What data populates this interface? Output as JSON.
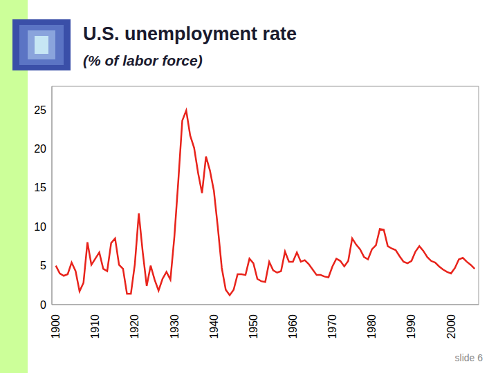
{
  "title": "U.S. unemployment rate",
  "subtitle": "(% of labor force)",
  "footer": "slide 6",
  "chart_data": {
    "type": "line",
    "color": "#e8231b",
    "grid": false,
    "x": [
      1900,
      1901,
      1902,
      1903,
      1904,
      1905,
      1906,
      1907,
      1908,
      1909,
      1910,
      1911,
      1912,
      1913,
      1914,
      1915,
      1916,
      1917,
      1918,
      1919,
      1920,
      1921,
      1922,
      1923,
      1924,
      1925,
      1926,
      1927,
      1928,
      1929,
      1930,
      1931,
      1932,
      1933,
      1934,
      1935,
      1936,
      1937,
      1938,
      1939,
      1940,
      1941,
      1942,
      1943,
      1944,
      1945,
      1946,
      1947,
      1948,
      1949,
      1950,
      1951,
      1952,
      1953,
      1954,
      1955,
      1956,
      1957,
      1958,
      1959,
      1960,
      1961,
      1962,
      1963,
      1964,
      1965,
      1966,
      1967,
      1968,
      1969,
      1970,
      1971,
      1972,
      1973,
      1974,
      1975,
      1976,
      1977,
      1978,
      1979,
      1980,
      1981,
      1982,
      1983,
      1984,
      1985,
      1986,
      1987,
      1988,
      1989,
      1990,
      1991,
      1992,
      1993,
      1994,
      1995,
      1996,
      1997,
      1998,
      1999,
      2000,
      2001,
      2002,
      2003,
      2004,
      2005,
      2006
    ],
    "values": [
      5.0,
      4.0,
      3.7,
      3.9,
      5.4,
      4.3,
      1.7,
      2.8,
      8.0,
      5.1,
      5.9,
      6.7,
      4.6,
      4.3,
      7.9,
      8.5,
      5.1,
      4.6,
      1.4,
      1.4,
      5.2,
      11.7,
      6.7,
      2.4,
      5.0,
      3.2,
      1.8,
      3.3,
      4.2,
      3.2,
      8.7,
      15.9,
      23.6,
      24.9,
      21.7,
      20.1,
      16.9,
      14.3,
      19.0,
      17.2,
      14.6,
      9.9,
      4.7,
      1.9,
      1.2,
      1.9,
      3.9,
      3.9,
      3.8,
      5.9,
      5.3,
      3.3,
      3.0,
      2.9,
      5.5,
      4.4,
      4.1,
      4.3,
      6.8,
      5.5,
      5.5,
      6.7,
      5.5,
      5.7,
      5.2,
      4.5,
      3.8,
      3.8,
      3.6,
      3.5,
      4.9,
      5.9,
      5.6,
      4.9,
      5.6,
      8.5,
      7.7,
      7.1,
      6.1,
      5.8,
      7.1,
      7.6,
      9.7,
      9.6,
      7.5,
      7.2,
      7.0,
      6.2,
      5.5,
      5.3,
      5.6,
      6.8,
      7.5,
      6.9,
      6.1,
      5.6,
      5.4,
      4.9,
      4.5,
      4.2,
      4.0,
      4.7,
      5.8,
      6.0,
      5.5,
      5.1,
      4.6
    ],
    "xlim": [
      1899,
      2007
    ],
    "xticks": [
      1900,
      1910,
      1920,
      1930,
      1940,
      1950,
      1960,
      1970,
      1980,
      1990,
      2000
    ],
    "ylim": [
      0,
      28
    ],
    "yticks": [
      0,
      5,
      10,
      15,
      20,
      25
    ]
  }
}
